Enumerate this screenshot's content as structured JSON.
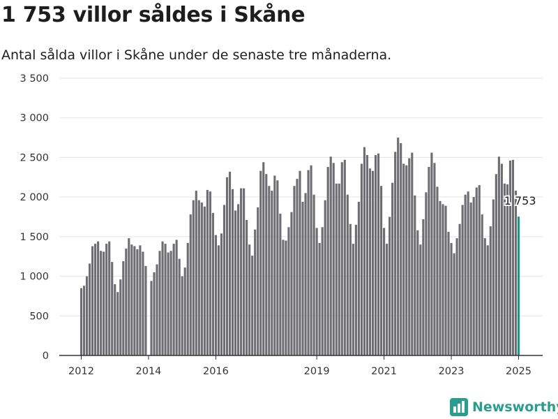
{
  "title": "1 753 villor såldes i Skåne",
  "subtitle": "Antal sålda villor i Skåne under de senaste tre månaderna.",
  "brand": {
    "name": "Newsworthy",
    "icon": "newsworthy-logo-icon",
    "color": "#2a9d8f"
  },
  "colors": {
    "bar": "#6e6d72",
    "highlight": "#17998a",
    "grid": "#e3e3e3",
    "axis": "#333333"
  },
  "chart_data": {
    "type": "bar",
    "title": "1 753 villor såldes i Skåne",
    "subtitle": "Antal sålda villor i Skåne under de senaste tre månaderna.",
    "x_start": "2012-01",
    "x_end": "2025-01",
    "ylim": [
      0,
      3500
    ],
    "y_ticks": [
      0,
      500,
      1000,
      1500,
      2000,
      2500,
      3000,
      3500
    ],
    "y_tick_labels": [
      "0",
      "500",
      "1 000",
      "1 500",
      "2 000",
      "2 500",
      "3 000",
      "3 500"
    ],
    "x_ticks": [
      2012,
      2014,
      2016,
      2019,
      2021,
      2023,
      2025
    ],
    "x_tick_labels": [
      "2012",
      "2014",
      "2016",
      "2019",
      "2021",
      "2023",
      "2025"
    ],
    "grid": "horizontal",
    "highlight": {
      "month": "2025-01",
      "value": 1753,
      "label": "1 753"
    },
    "months": [
      "2012-01",
      "2012-02",
      "2012-03",
      "2012-04",
      "2012-05",
      "2012-06",
      "2012-07",
      "2012-08",
      "2012-09",
      "2012-10",
      "2012-11",
      "2012-12",
      "2013-01",
      "2013-02",
      "2013-03",
      "2013-04",
      "2013-05",
      "2013-06",
      "2013-07",
      "2013-08",
      "2013-09",
      "2013-10",
      "2013-11",
      "2013-12",
      "2014-01",
      "2014-02",
      "2014-03",
      "2014-04",
      "2014-05",
      "2014-06",
      "2014-07",
      "2014-08",
      "2014-09",
      "2014-10",
      "2014-11",
      "2014-12",
      "2015-01",
      "2015-02",
      "2015-03",
      "2015-04",
      "2015-05",
      "2015-06",
      "2015-07",
      "2015-08",
      "2015-09",
      "2015-10",
      "2015-11",
      "2015-12",
      "2016-01",
      "2016-02",
      "2016-03",
      "2016-04",
      "2016-05",
      "2016-06",
      "2016-07",
      "2016-08",
      "2016-09",
      "2016-10",
      "2016-11",
      "2016-12",
      "2017-01",
      "2017-02",
      "2017-03",
      "2017-04",
      "2017-05",
      "2017-06",
      "2017-07",
      "2017-08",
      "2017-09",
      "2017-10",
      "2017-11",
      "2017-12",
      "2018-01",
      "2018-02",
      "2018-03",
      "2018-04",
      "2018-05",
      "2018-06",
      "2018-07",
      "2018-08",
      "2018-09",
      "2018-10",
      "2018-11",
      "2018-12",
      "2019-01",
      "2019-02",
      "2019-03",
      "2019-04",
      "2019-05",
      "2019-06",
      "2019-07",
      "2019-08",
      "2019-09",
      "2019-10",
      "2019-11",
      "2019-12",
      "2020-01",
      "2020-02",
      "2020-03",
      "2020-04",
      "2020-05",
      "2020-06",
      "2020-07",
      "2020-08",
      "2020-09",
      "2020-10",
      "2020-11",
      "2020-12",
      "2021-01",
      "2021-02",
      "2021-03",
      "2021-04",
      "2021-05",
      "2021-06",
      "2021-07",
      "2021-08",
      "2021-09",
      "2021-10",
      "2021-11",
      "2021-12",
      "2022-01",
      "2022-02",
      "2022-03",
      "2022-04",
      "2022-05",
      "2022-06",
      "2022-07",
      "2022-08",
      "2022-09",
      "2022-10",
      "2022-11",
      "2022-12",
      "2023-01",
      "2023-02",
      "2023-03",
      "2023-04",
      "2023-05",
      "2023-06",
      "2023-07",
      "2023-08",
      "2023-09",
      "2023-10",
      "2023-11",
      "2023-12",
      "2024-01",
      "2024-02",
      "2024-03",
      "2024-04",
      "2024-05",
      "2024-06",
      "2024-07",
      "2024-08",
      "2024-09",
      "2024-10",
      "2024-11",
      "2024-12",
      "2025-01"
    ],
    "values": [
      850,
      880,
      1000,
      1160,
      1380,
      1410,
      1440,
      1320,
      1310,
      1410,
      1440,
      1180,
      900,
      800,
      960,
      1190,
      1350,
      1480,
      1400,
      1380,
      1340,
      1390,
      1310,
      1130,
      null,
      940,
      1050,
      1150,
      1320,
      1440,
      1410,
      1300,
      1320,
      1410,
      1460,
      1220,
      1000,
      1110,
      1420,
      1780,
      1960,
      2080,
      1960,
      1930,
      1880,
      2090,
      2070,
      1800,
      1520,
      1390,
      1540,
      1900,
      2250,
      2320,
      2100,
      1830,
      1910,
      2110,
      2110,
      1710,
      1400,
      1260,
      1590,
      1870,
      2330,
      2440,
      2290,
      2140,
      2080,
      2270,
      2210,
      1790,
      1460,
      1450,
      1620,
      1810,
      2140,
      2230,
      2330,
      1940,
      2050,
      2340,
      2400,
      2030,
      1610,
      1420,
      1620,
      1960,
      2380,
      2510,
      2430,
      2170,
      2170,
      2440,
      2470,
      2030,
      1660,
      1410,
      1650,
      1940,
      2420,
      2630,
      2530,
      2360,
      2330,
      2530,
      2550,
      2140,
      1610,
      1410,
      1750,
      2180,
      2570,
      2750,
      2680,
      2420,
      2400,
      2490,
      2560,
      2020,
      1580,
      1400,
      1720,
      2060,
      2380,
      2560,
      2430,
      2130,
      1950,
      1910,
      1890,
      1560,
      1420,
      1290,
      1480,
      1660,
      1900,
      2030,
      2070,
      1930,
      2000,
      2120,
      2150,
      1780,
      1480,
      1390,
      1630,
      1970,
      2290,
      2510,
      2420,
      2170,
      2160,
      2460,
      2470,
      2080,
      1753
    ]
  }
}
